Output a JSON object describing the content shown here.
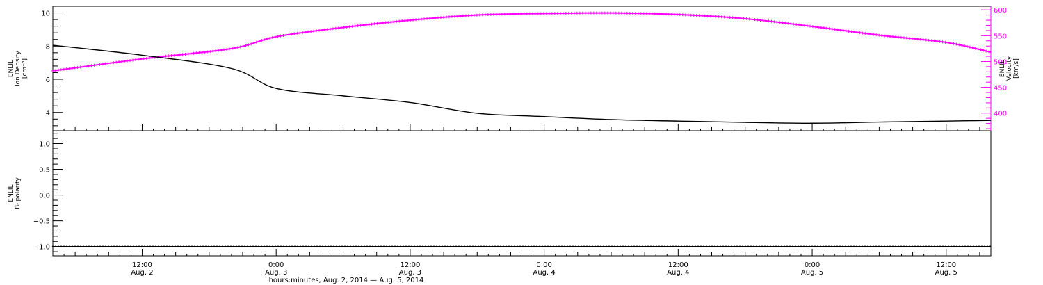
{
  "chart_data": [
    {
      "type": "line",
      "panel": "top",
      "x_range": [
        "2014-08-02T04:00",
        "2014-08-05T16:00"
      ],
      "left_axis": {
        "label_lines": [
          "ENLIL",
          "Ion Density",
          "[cm⁻³]"
        ],
        "ylim": [
          2.9,
          10.4
        ],
        "tick_labels": [
          "4",
          "6",
          "8",
          "10"
        ]
      },
      "right_axis": {
        "label_lines": [
          "ENLIL",
          "Velocity",
          "[km/s]"
        ],
        "ylim": [
          366,
          607
        ],
        "tick_labels": [
          "400",
          "450",
          "500",
          "550",
          "600"
        ],
        "color": "#ff00ff"
      },
      "series": [
        {
          "axis": "left",
          "color": "#000000",
          "points": [
            [
              "2014-08-02T04:00",
              8.05
            ],
            [
              "2014-08-02T12:00",
              7.45
            ],
            [
              "2014-08-02T20:00",
              6.65
            ],
            [
              "2014-08-03T00:00",
              5.45
            ],
            [
              "2014-08-03T06:00",
              5.0
            ],
            [
              "2014-08-03T12:00",
              4.6
            ],
            [
              "2014-08-03T18:00",
              3.95
            ],
            [
              "2014-08-04T00:00",
              3.75
            ],
            [
              "2014-08-04T06:00",
              3.57
            ],
            [
              "2014-08-04T12:00",
              3.48
            ],
            [
              "2014-08-04T18:00",
              3.4
            ],
            [
              "2014-08-05T00:00",
              3.35
            ],
            [
              "2014-08-05T06:00",
              3.42
            ],
            [
              "2014-08-05T12:00",
              3.48
            ],
            [
              "2014-08-05T16:00",
              3.52
            ]
          ]
        },
        {
          "axis": "right",
          "color": "#ff00ff",
          "points": [
            [
              "2014-08-02T04:00",
              482
            ],
            [
              "2014-08-02T12:00",
              505
            ],
            [
              "2014-08-02T20:00",
              525
            ],
            [
              "2014-08-03T00:00",
              548
            ],
            [
              "2014-08-03T06:00",
              566
            ],
            [
              "2014-08-03T12:00",
              580
            ],
            [
              "2014-08-03T18:00",
              590
            ],
            [
              "2014-08-04T00:00",
              593
            ],
            [
              "2014-08-04T06:00",
              594
            ],
            [
              "2014-08-04T12:00",
              591
            ],
            [
              "2014-08-04T18:00",
              583
            ],
            [
              "2014-08-05T00:00",
              568
            ],
            [
              "2014-08-05T06:00",
              551
            ],
            [
              "2014-08-05T12:00",
              537
            ],
            [
              "2014-08-05T16:00",
              518
            ]
          ]
        }
      ]
    },
    {
      "type": "line",
      "panel": "bottom",
      "x_range": [
        "2014-08-02T04:00",
        "2014-08-05T16:00"
      ],
      "left_axis": {
        "label_lines": [
          "ENLIL",
          "Bᵣ polarity"
        ],
        "ylim": [
          -1.18,
          1.25
        ],
        "tick_labels": [
          "−1.0",
          "−0.5",
          "0.0",
          "0.5",
          "1.0"
        ]
      },
      "series": [
        {
          "axis": "left",
          "color": "#000000",
          "points": [
            [
              "2014-08-02T04:00",
              -1.0
            ],
            [
              "2014-08-05T16:00",
              -1.0
            ]
          ]
        }
      ]
    }
  ],
  "x_axis": {
    "tick_labels": [
      {
        "time": "12:00",
        "date": "Aug. 2"
      },
      {
        "time": "0:00",
        "date": "Aug. 3"
      },
      {
        "time": "12:00",
        "date": "Aug. 3"
      },
      {
        "time": "0:00",
        "date": "Aug. 4"
      },
      {
        "time": "12:00",
        "date": "Aug. 4"
      },
      {
        "time": "0:00",
        "date": "Aug. 5"
      },
      {
        "time": "12:00",
        "date": "Aug. 5"
      }
    ],
    "title": "hours:minutes, Aug.  2, 2014 — Aug.  5, 2014"
  }
}
